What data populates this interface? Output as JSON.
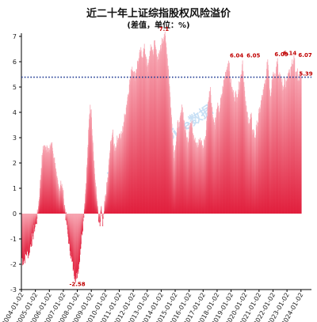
{
  "chart_data": {
    "type": "bar",
    "title": "近二十年上证综指股权风险溢价",
    "subtitle": "(差值，单位：%)",
    "xlabel": "",
    "ylabel": "",
    "ylim": [
      -3,
      7
    ],
    "yticks": [
      -3,
      -2,
      -1,
      0,
      1,
      2,
      3,
      4,
      5,
      6,
      7
    ],
    "x_tick_labels": [
      "2004-01-02",
      "2005-01-02",
      "2006-01-02",
      "2007-01-02",
      "2008-01-02",
      "2009-01-02",
      "2010-01-02",
      "2011-01-02",
      "2012-01-02",
      "2013-01-02",
      "2014-01-02",
      "2015-01-02",
      "2016-01-02",
      "2017-01-02",
      "2018-01-02",
      "2019-01-02",
      "2020-01-02",
      "2021-01-02",
      "2022-01-02",
      "2023-01-02",
      "2024-01-02"
    ],
    "x_range": [
      2004.0,
      2024.75
    ],
    "reference_line": {
      "value": 5.39,
      "label": "5.39",
      "style": "dotted",
      "color": "#1f3a93"
    },
    "annotations": [
      {
        "x": 2008.0,
        "y": -2.58,
        "label": "-2.58"
      },
      {
        "x": 2014.2,
        "y": 7.1,
        "label": "7.1"
      },
      {
        "x": 2019.4,
        "y": 6.04,
        "label": "6.04"
      },
      {
        "x": 2020.6,
        "y": 6.05,
        "label": "6.05"
      },
      {
        "x": 2022.6,
        "y": 6.09,
        "label": "6.09"
      },
      {
        "x": 2023.2,
        "y": 6.14,
        "label": "6.14"
      },
      {
        "x": 2024.3,
        "y": 6.07,
        "label": "6.07"
      }
    ],
    "bar_color": "#e11e3c",
    "series": [
      {
        "values": [
          [
            2004.0,
            -1.7
          ],
          [
            2004.1,
            -1.9
          ],
          [
            2004.2,
            -1.8
          ],
          [
            2004.3,
            -1.6
          ],
          [
            2004.4,
            -1.5
          ],
          [
            2004.5,
            -1.6
          ],
          [
            2004.6,
            -1.3
          ],
          [
            2004.7,
            -1.1
          ],
          [
            2004.8,
            -0.9
          ],
          [
            2004.9,
            -0.6
          ],
          [
            2005.0,
            -0.4
          ],
          [
            2005.1,
            -0.2
          ],
          [
            2005.2,
            0.3
          ],
          [
            2005.3,
            1.0
          ],
          [
            2005.4,
            1.8
          ],
          [
            2005.5,
            2.4
          ],
          [
            2005.6,
            2.7
          ],
          [
            2005.7,
            2.5
          ],
          [
            2005.8,
            2.7
          ],
          [
            2005.9,
            2.6
          ],
          [
            2006.0,
            2.4
          ],
          [
            2006.1,
            2.8
          ],
          [
            2006.2,
            2.6
          ],
          [
            2006.3,
            2.2
          ],
          [
            2006.4,
            2.0
          ],
          [
            2006.5,
            1.3
          ],
          [
            2006.6,
            1.1
          ],
          [
            2006.7,
            0.9
          ],
          [
            2006.8,
            1.3
          ],
          [
            2006.9,
            1.0
          ],
          [
            2007.0,
            0.6
          ],
          [
            2007.1,
            0.2
          ],
          [
            2007.2,
            -0.3
          ],
          [
            2007.3,
            -0.8
          ],
          [
            2007.4,
            -1.2
          ],
          [
            2007.5,
            -1.5
          ],
          [
            2007.6,
            -1.9
          ],
          [
            2007.7,
            -2.2
          ],
          [
            2007.8,
            -2.4
          ],
          [
            2007.9,
            -2.58
          ],
          [
            2008.0,
            -2.3
          ],
          [
            2008.1,
            -2.0
          ],
          [
            2008.2,
            -1.4
          ],
          [
            2008.3,
            -0.8
          ],
          [
            2008.4,
            -0.3
          ],
          [
            2008.5,
            0.4
          ],
          [
            2008.6,
            1.2
          ],
          [
            2008.7,
            2.2
          ],
          [
            2008.8,
            3.4
          ],
          [
            2008.9,
            4.3
          ],
          [
            2009.0,
            3.8
          ],
          [
            2009.1,
            2.8
          ],
          [
            2009.2,
            1.8
          ],
          [
            2009.3,
            1.0
          ],
          [
            2009.4,
            0.5
          ],
          [
            2009.5,
            -0.3
          ],
          [
            2009.6,
            -0.5
          ],
          [
            2009.7,
            0.3
          ],
          [
            2009.8,
            -0.5
          ],
          [
            2009.9,
            0.1
          ],
          [
            2010.0,
            0.7
          ],
          [
            2010.1,
            1.1
          ],
          [
            2010.2,
            1.6
          ],
          [
            2010.3,
            2.4
          ],
          [
            2010.4,
            2.9
          ],
          [
            2010.5,
            3.2
          ],
          [
            2010.6,
            2.7
          ],
          [
            2010.7,
            2.6
          ],
          [
            2010.8,
            2.8
          ],
          [
            2010.9,
            3.0
          ],
          [
            2011.0,
            3.1
          ],
          [
            2011.1,
            3.0
          ],
          [
            2011.2,
            3.2
          ],
          [
            2011.3,
            3.6
          ],
          [
            2011.4,
            3.9
          ],
          [
            2011.5,
            4.3
          ],
          [
            2011.6,
            4.7
          ],
          [
            2011.7,
            5.1
          ],
          [
            2011.8,
            5.4
          ],
          [
            2011.9,
            5.8
          ],
          [
            2012.0,
            5.6
          ],
          [
            2012.1,
            5.4
          ],
          [
            2012.2,
            5.7
          ],
          [
            2012.3,
            6.0
          ],
          [
            2012.4,
            6.1
          ],
          [
            2012.5,
            6.4
          ],
          [
            2012.6,
            6.2
          ],
          [
            2012.7,
            6.4
          ],
          [
            2012.8,
            6.5
          ],
          [
            2012.9,
            6.2
          ],
          [
            2013.0,
            5.6
          ],
          [
            2013.1,
            6.1
          ],
          [
            2013.2,
            6.4
          ],
          [
            2013.3,
            6.6
          ],
          [
            2013.4,
            6.3
          ],
          [
            2013.5,
            6.8
          ],
          [
            2013.6,
            6.5
          ],
          [
            2013.7,
            6.2
          ],
          [
            2013.8,
            6.1
          ],
          [
            2013.9,
            6.4
          ],
          [
            2014.0,
            6.7
          ],
          [
            2014.1,
            6.9
          ],
          [
            2014.2,
            7.1
          ],
          [
            2014.3,
            6.8
          ],
          [
            2014.4,
            6.3
          ],
          [
            2014.5,
            5.7
          ],
          [
            2014.6,
            4.8
          ],
          [
            2014.7,
            3.9
          ],
          [
            2014.8,
            3.2
          ],
          [
            2014.9,
            2.2
          ],
          [
            2015.0,
            2.7
          ],
          [
            2015.1,
            3.2
          ],
          [
            2015.2,
            3.6
          ],
          [
            2015.3,
            3.4
          ],
          [
            2015.4,
            4.0
          ],
          [
            2015.5,
            4.2
          ],
          [
            2015.6,
            3.7
          ],
          [
            2015.7,
            3.3
          ],
          [
            2015.8,
            3.0
          ],
          [
            2015.9,
            2.8
          ],
          [
            2016.0,
            3.5
          ],
          [
            2016.1,
            3.6
          ],
          [
            2016.2,
            3.4
          ],
          [
            2016.3,
            3.1
          ],
          [
            2016.4,
            3.0
          ],
          [
            2016.5,
            2.8
          ],
          [
            2016.6,
            2.6
          ],
          [
            2016.7,
            2.8
          ],
          [
            2016.8,
            2.9
          ],
          [
            2016.9,
            2.7
          ],
          [
            2017.0,
            2.6
          ],
          [
            2017.1,
            2.9
          ],
          [
            2017.2,
            3.3
          ],
          [
            2017.3,
            4.2
          ],
          [
            2017.4,
            4.6
          ],
          [
            2017.5,
            5.0
          ],
          [
            2017.6,
            4.2
          ],
          [
            2017.7,
            3.8
          ],
          [
            2017.8,
            3.5
          ],
          [
            2017.9,
            3.8
          ],
          [
            2018.0,
            4.2
          ],
          [
            2018.1,
            4.0
          ],
          [
            2018.2,
            4.3
          ],
          [
            2018.3,
            4.6
          ],
          [
            2018.4,
            5.0
          ],
          [
            2018.5,
            5.3
          ],
          [
            2018.6,
            5.6
          ],
          [
            2018.7,
            5.8
          ],
          [
            2018.8,
            6.04
          ],
          [
            2018.9,
            5.4
          ],
          [
            2019.0,
            5.0
          ],
          [
            2019.1,
            4.8
          ],
          [
            2019.2,
            4.6
          ],
          [
            2019.3,
            4.7
          ],
          [
            2019.4,
            4.6
          ],
          [
            2019.5,
            4.9
          ],
          [
            2019.6,
            5.2
          ],
          [
            2019.7,
            5.5
          ],
          [
            2019.8,
            6.05
          ],
          [
            2019.9,
            5.2
          ],
          [
            2020.0,
            4.3
          ],
          [
            2020.1,
            4.0
          ],
          [
            2020.2,
            3.8
          ],
          [
            2020.3,
            3.5
          ],
          [
            2020.4,
            3.9
          ],
          [
            2020.5,
            3.3
          ],
          [
            2020.6,
            3.2
          ],
          [
            2020.7,
            3.0
          ],
          [
            2020.8,
            3.4
          ],
          [
            2020.9,
            3.6
          ],
          [
            2021.0,
            4.0
          ],
          [
            2021.1,
            4.3
          ],
          [
            2021.2,
            4.6
          ],
          [
            2021.3,
            4.8
          ],
          [
            2021.4,
            5.1
          ],
          [
            2021.5,
            5.4
          ],
          [
            2021.6,
            6.09
          ],
          [
            2021.7,
            5.3
          ],
          [
            2021.8,
            4.6
          ],
          [
            2021.9,
            5.3
          ],
          [
            2022.0,
            5.6
          ],
          [
            2022.1,
            5.4
          ],
          [
            2022.2,
            5.8
          ],
          [
            2022.3,
            6.14
          ],
          [
            2022.4,
            5.2
          ],
          [
            2022.5,
            5.5
          ],
          [
            2022.6,
            5.2
          ],
          [
            2022.7,
            4.9
          ],
          [
            2022.8,
            5.4
          ],
          [
            2022.9,
            5.0
          ],
          [
            2023.0,
            5.3
          ],
          [
            2023.1,
            5.6
          ],
          [
            2023.2,
            5.4
          ],
          [
            2023.3,
            5.8
          ],
          [
            2023.4,
            5.9
          ],
          [
            2023.5,
            6.07
          ],
          [
            2023.6,
            5.4
          ],
          [
            2023.7,
            5.6
          ],
          [
            2023.8,
            5.3
          ],
          [
            2023.9,
            5.5
          ],
          [
            2024.0,
            5.39
          ]
        ]
      }
    ]
  },
  "watermark": "东方财富Choice数据",
  "colors": {
    "bar": "#e11e3c",
    "annotation": "#c00000",
    "refline": "#1f3a93",
    "axis": "#000000"
  }
}
